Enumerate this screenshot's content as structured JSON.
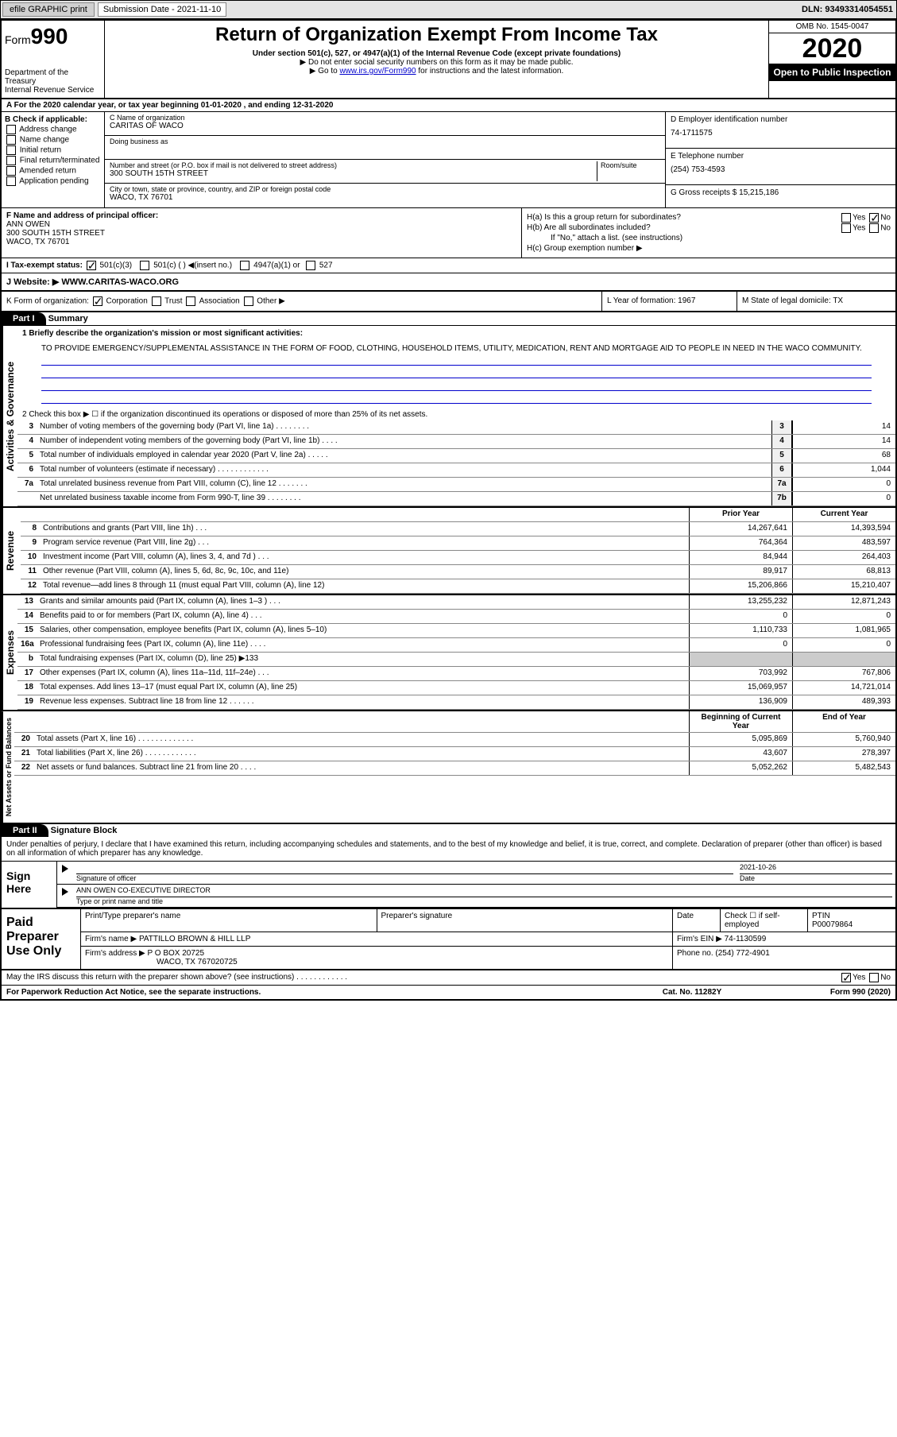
{
  "topbar": {
    "efile": "efile GRAPHIC print",
    "submission_lbl": "Submission Date - ",
    "submission_date": "2021-11-10",
    "dln_lbl": "DLN: ",
    "dln": "93493314054551"
  },
  "header": {
    "form_lbl": "Form",
    "form_num": "990",
    "dept": "Department of the Treasury\nInternal Revenue Service",
    "title": "Return of Organization Exempt From Income Tax",
    "sub1": "Under section 501(c), 527, or 4947(a)(1) of the Internal Revenue Code (except private foundations)",
    "sub2": "▶ Do not enter social security numbers on this form as it may be made public.",
    "sub3_pre": "▶ Go to ",
    "sub3_link": "www.irs.gov/Form990",
    "sub3_post": " for instructions and the latest information.",
    "omb": "OMB No. 1545-0047",
    "year": "2020",
    "inspect": "Open to Public Inspection"
  },
  "rowA": "A For the 2020 calendar year, or tax year beginning 01-01-2020    , and ending 12-31-2020",
  "colB": {
    "lbl": "B Check if applicable:",
    "opts": [
      "Address change",
      "Name change",
      "Initial return",
      "Final return/terminated",
      "Amended return",
      "Application pending"
    ]
  },
  "colC": {
    "name_lbl": "C Name of organization",
    "name": "CARITAS OF WACO",
    "dba_lbl": "Doing business as",
    "dba": "",
    "addr_lbl": "Number and street (or P.O. box if mail is not delivered to street address)",
    "room_lbl": "Room/suite",
    "addr": "300 SOUTH 15TH STREET",
    "city_lbl": "City or town, state or province, country, and ZIP or foreign postal code",
    "city": "WACO, TX  76701"
  },
  "colD": {
    "lbl": "D Employer identification number",
    "val": "74-1711575"
  },
  "colE": {
    "lbl": "E Telephone number",
    "val": "(254) 753-4593"
  },
  "colG": {
    "lbl": "G Gross receipts $ ",
    "val": "15,215,186"
  },
  "colF": {
    "lbl": "F Name and address of principal officer:",
    "name": "ANN OWEN",
    "addr": "300 SOUTH 15TH STREET\nWACO, TX  76701"
  },
  "colH": {
    "a": "H(a)  Is this a group return for subordinates?",
    "a_yes": "Yes",
    "a_no": "No",
    "b": "H(b)  Are all subordinates included?",
    "b_yes": "Yes",
    "b_no": "No",
    "b_note": "If \"No,\" attach a list. (see instructions)",
    "c": "H(c)  Group exemption number ▶"
  },
  "rowI": {
    "lbl": "I  Tax-exempt status:",
    "o1": "501(c)(3)",
    "o2": "501(c) (  ) ◀(insert no.)",
    "o3": "4947(a)(1) or",
    "o4": "527"
  },
  "rowJ": {
    "lbl": "J  Website: ▶",
    "val": "WWW.CARITAS-WACO.ORG"
  },
  "rowK": {
    "lbl": "K Form of organization:",
    "o1": "Corporation",
    "o2": "Trust",
    "o3": "Association",
    "o4": "Other ▶"
  },
  "rowL": {
    "lbl": "L Year of formation: ",
    "val": "1967"
  },
  "rowM": {
    "lbl": "M State of legal domicile: ",
    "val": "TX"
  },
  "part1": {
    "hdr": "Part I",
    "title": "Summary",
    "q1_lbl": "1  Briefly describe the organization's mission or most significant activities:",
    "q1": "TO PROVIDE EMERGENCY/SUPPLEMENTAL ASSISTANCE IN THE FORM OF FOOD, CLOTHING, HOUSEHOLD ITEMS, UTILITY, MEDICATION, RENT AND MORTGAGE AID TO PEOPLE IN NEED IN THE WACO COMMUNITY.",
    "q2": "2  Check this box ▶ ☐ if the organization discontinued its operations or disposed of more than 25% of its net assets.",
    "sections": {
      "gov": "Activities & Governance",
      "rev": "Revenue",
      "exp": "Expenses",
      "net": "Net Assets or Fund Balances"
    },
    "lines_gov": [
      {
        "n": "3",
        "d": "Number of voting members of the governing body (Part VI, line 1a)  .    .    .    .    .    .    .    .",
        "box": "3",
        "v": "14"
      },
      {
        "n": "4",
        "d": "Number of independent voting members of the governing body (Part VI, line 1b)  .    .    .    .",
        "box": "4",
        "v": "14"
      },
      {
        "n": "5",
        "d": "Total number of individuals employed in calendar year 2020 (Part V, line 2a)  .    .    .    .    .",
        "box": "5",
        "v": "68"
      },
      {
        "n": "6",
        "d": "Total number of volunteers (estimate if necessary)    .    .    .    .    .    .    .    .    .    .    .    .",
        "box": "6",
        "v": "1,044"
      },
      {
        "n": "7a",
        "d": "Total unrelated business revenue from Part VIII, column (C), line 12  .    .    .    .    .    .    .",
        "box": "7a",
        "v": "0"
      },
      {
        "n": "",
        "d": "Net unrelated business taxable income from Form 990-T, line 39   .    .    .    .    .    .    .    .",
        "box": "7b",
        "v": "0"
      }
    ],
    "col_hdr": {
      "py": "Prior Year",
      "cy": "Current Year"
    },
    "lines_rev": [
      {
        "n": "8",
        "d": "Contributions and grants (Part VIII, line 1h)   .    .    .",
        "py": "14,267,641",
        "cy": "14,393,594"
      },
      {
        "n": "9",
        "d": "Program service revenue (Part VIII, line 2g)   .    .    .",
        "py": "764,364",
        "cy": "483,597"
      },
      {
        "n": "10",
        "d": "Investment income (Part VIII, column (A), lines 3, 4, and 7d )    .    .    .",
        "py": "84,944",
        "cy": "264,403"
      },
      {
        "n": "11",
        "d": "Other revenue (Part VIII, column (A), lines 5, 6d, 8c, 9c, 10c, and 11e)",
        "py": "89,917",
        "cy": "68,813"
      },
      {
        "n": "12",
        "d": "Total revenue—add lines 8 through 11 (must equal Part VIII, column (A), line 12)",
        "py": "15,206,866",
        "cy": "15,210,407"
      }
    ],
    "lines_exp": [
      {
        "n": "13",
        "d": "Grants and similar amounts paid (Part IX, column (A), lines 1–3 )  .    .    .",
        "py": "13,255,232",
        "cy": "12,871,243"
      },
      {
        "n": "14",
        "d": "Benefits paid to or for members (Part IX, column (A), line 4)  .    .    .",
        "py": "0",
        "cy": "0"
      },
      {
        "n": "15",
        "d": "Salaries, other compensation, employee benefits (Part IX, column (A), lines 5–10)",
        "py": "1,110,733",
        "cy": "1,081,965"
      },
      {
        "n": "16a",
        "d": "Professional fundraising fees (Part IX, column (A), line 11e)  .    .    .    .",
        "py": "0",
        "cy": "0"
      },
      {
        "n": "b",
        "d": "Total fundraising expenses (Part IX, column (D), line 25) ▶133",
        "py": "",
        "cy": "",
        "shaded": true
      },
      {
        "n": "17",
        "d": "Other expenses (Part IX, column (A), lines 11a–11d, 11f–24e)  .    .    .",
        "py": "703,992",
        "cy": "767,806"
      },
      {
        "n": "18",
        "d": "Total expenses. Add lines 13–17 (must equal Part IX, column (A), line 25)",
        "py": "15,069,957",
        "cy": "14,721,014"
      },
      {
        "n": "19",
        "d": "Revenue less expenses. Subtract line 18 from line 12  .    .    .    .    .    .",
        "py": "136,909",
        "cy": "489,393"
      }
    ],
    "net_hdr": {
      "py": "Beginning of Current Year",
      "cy": "End of Year"
    },
    "lines_net": [
      {
        "n": "20",
        "d": "Total assets (Part X, line 16)  .    .    .    .    .    .    .    .    .    .    .    .    .",
        "py": "5,095,869",
        "cy": "5,760,940"
      },
      {
        "n": "21",
        "d": "Total liabilities (Part X, line 26)   .    .    .    .    .    .    .    .    .    .    .    .",
        "py": "43,607",
        "cy": "278,397"
      },
      {
        "n": "22",
        "d": "Net assets or fund balances. Subtract line 21 from line 20  .    .    .    .",
        "py": "5,052,262",
        "cy": "5,482,543"
      }
    ]
  },
  "part2": {
    "hdr": "Part II",
    "title": "Signature Block",
    "decl": "Under penalties of perjury, I declare that I have examined this return, including accompanying schedules and statements, and to the best of my knowledge and belief, it is true, correct, and complete. Declaration of preparer (other than officer) is based on all information of which preparer has any knowledge.",
    "sign_here": "Sign Here",
    "sig_officer_lbl": "Signature of officer",
    "sig_date": "2021-10-26",
    "date_lbl": "Date",
    "name_title": "ANN OWEN  CO-EXECUTIVE DIRECTOR",
    "name_title_lbl": "Type or print name and title"
  },
  "paid": {
    "lbl": "Paid Preparer Use Only",
    "c1": "Print/Type preparer's name",
    "c2": "Preparer's signature",
    "c3": "Date",
    "c4_lbl": "Check ☐ if self-employed",
    "c5_lbl": "PTIN",
    "c5": "P00079864",
    "firm_lbl": "Firm's name    ▶",
    "firm": "PATTILLO BROWN & HILL LLP",
    "ein_lbl": "Firm's EIN ▶",
    "ein": "74-1130599",
    "addr_lbl": "Firm's address ▶",
    "addr1": "P O BOX 20725",
    "addr2": "WACO, TX  767020725",
    "phone_lbl": "Phone no. ",
    "phone": "(254) 772-4901"
  },
  "footer": {
    "q": "May the IRS discuss this return with the preparer shown above? (see instructions)   .    .    .    .    .    .    .    .    .    .    .    .",
    "yes": "Yes",
    "no": "No",
    "pra": "For Paperwork Reduction Act Notice, see the separate instructions.",
    "cat": "Cat. No. 11282Y",
    "form": "Form 990 (2020)"
  }
}
